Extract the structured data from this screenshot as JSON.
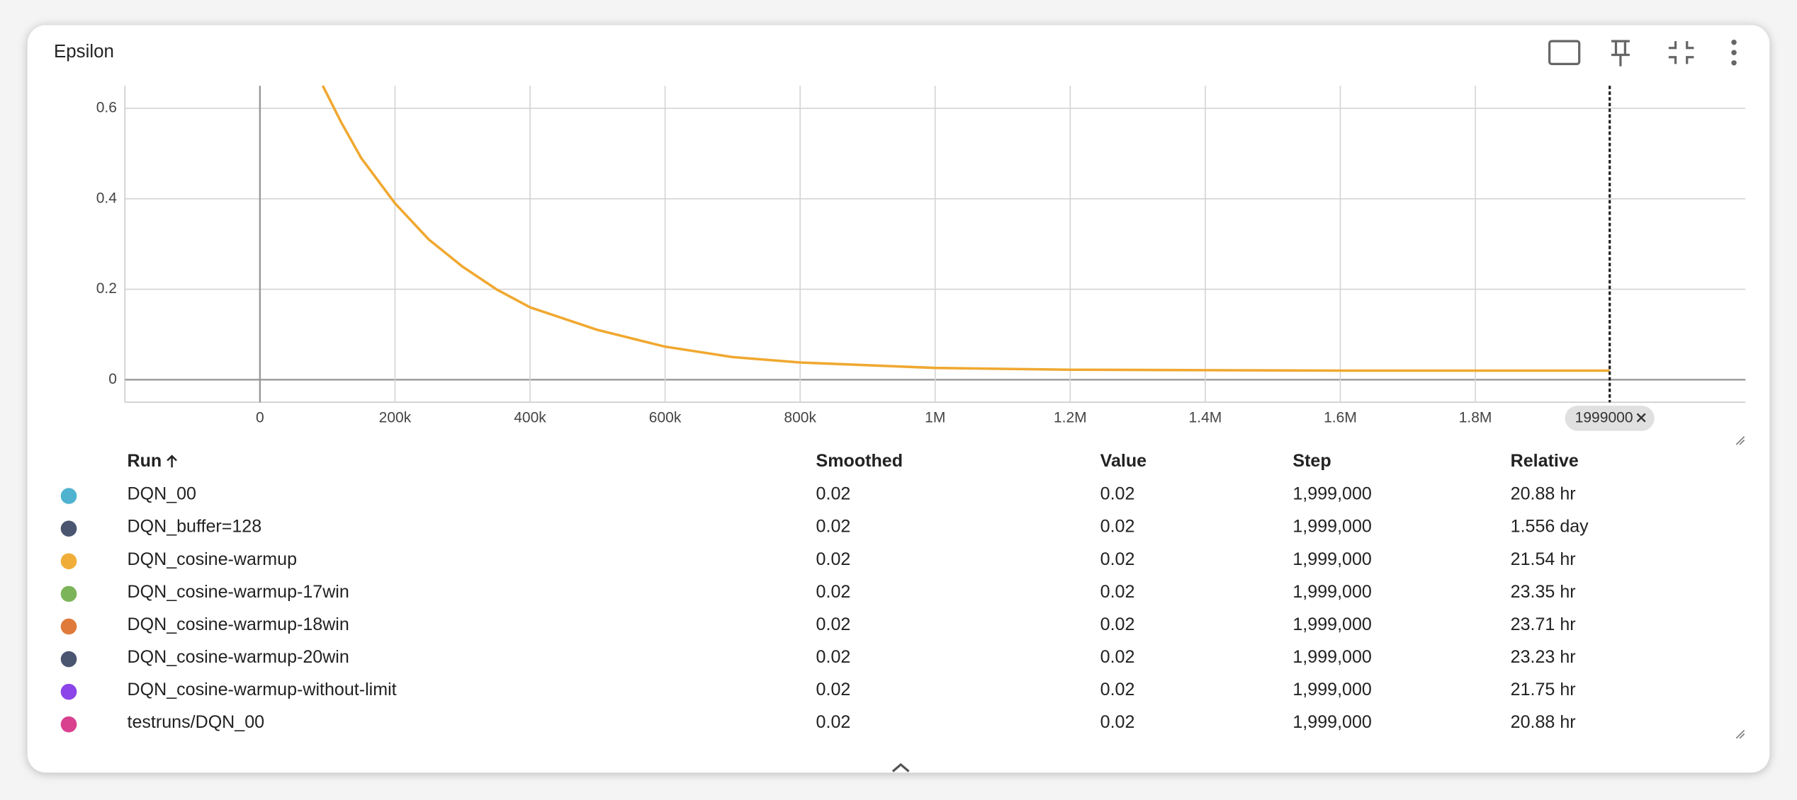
{
  "chart_data": {
    "type": "line",
    "title": "Epsilon",
    "x": [
      93000,
      120000,
      150000,
      200000,
      250000,
      300000,
      350000,
      400000,
      500000,
      600000,
      700000,
      800000,
      1000000,
      1200000,
      1400000,
      1600000,
      1800000,
      1999000
    ],
    "series": [
      {
        "name": "DQN_cosine-warmup",
        "color": "#f0a830",
        "values": [
          0.65,
          0.57,
          0.49,
          0.39,
          0.31,
          0.25,
          0.2,
          0.16,
          0.11,
          0.073,
          0.05,
          0.038,
          0.026,
          0.022,
          0.021,
          0.02,
          0.02,
          0.02
        ]
      }
    ],
    "xlim": [
      -200000,
      2200000
    ],
    "xticks": [
      0,
      {
        "value": 200000,
        "label": "200k"
      },
      {
        "value": 400000,
        "label": "400k"
      },
      {
        "value": 600000,
        "label": "600k"
      },
      {
        "value": 800000,
        "label": "800k"
      },
      {
        "value": 1000000,
        "label": "1M"
      },
      {
        "value": 1200000,
        "label": "1.2M"
      },
      {
        "value": 1400000,
        "label": "1.4M"
      },
      {
        "value": 1600000,
        "label": "1.6M"
      },
      {
        "value": 1800000,
        "label": "1.8M"
      }
    ],
    "ylim": [
      -0.05,
      0.65
    ],
    "yticks": [
      0,
      0.2,
      0.4,
      0.6
    ],
    "grid": true,
    "cursor": 1999000
  },
  "table": {
    "columns": [
      "Run",
      "Smoothed",
      "Value",
      "Step",
      "Relative"
    ],
    "rows": [
      {
        "color": "#4fb3d0",
        "cells": [
          "DQN_00",
          "0.02",
          "0.02",
          "1,999,000",
          "20.88 hr"
        ]
      },
      {
        "color": "#4a5670",
        "cells": [
          "DQN_buffer=128",
          "0.02",
          "0.02",
          "1,999,000",
          "1.556 day"
        ]
      },
      {
        "color": "#f0ad38",
        "cells": [
          "DQN_cosine-warmup",
          "0.02",
          "0.02",
          "1,999,000",
          "21.54 hr"
        ]
      },
      {
        "color": "#7cb45a",
        "cells": [
          "DQN_cosine-warmup-17win",
          "0.02",
          "0.02",
          "1,999,000",
          "23.35 hr"
        ]
      },
      {
        "color": "#e07a3a",
        "cells": [
          "DQN_cosine-warmup-18win",
          "0.02",
          "0.02",
          "1,999,000",
          "23.71 hr"
        ]
      },
      {
        "color": "#4a5670",
        "cells": [
          "DQN_cosine-warmup-20win",
          "0.02",
          "0.02",
          "1,999,000",
          "23.23 hr"
        ]
      },
      {
        "color": "#8b45e8",
        "cells": [
          "DQN_cosine-warmup-without-limit",
          "0.02",
          "0.02",
          "1,999,000",
          "21.75 hr"
        ]
      },
      {
        "color": "#d9418f",
        "cells": [
          "testruns/DQN_00",
          "0.02",
          "0.02",
          "1,999,000",
          "20.88 hr"
        ]
      }
    ]
  }
}
